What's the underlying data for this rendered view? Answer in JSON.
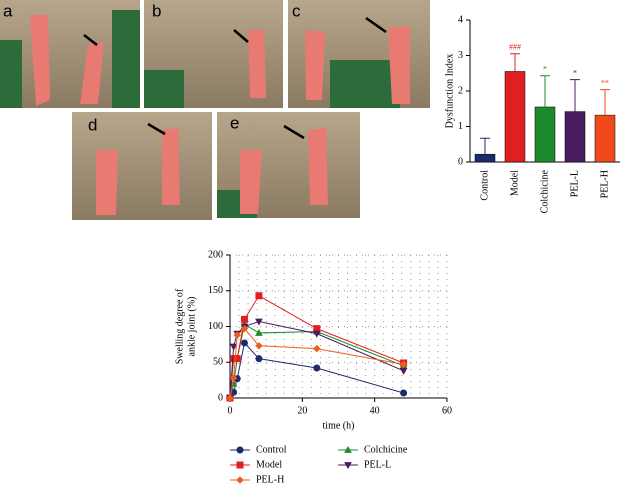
{
  "panels": {
    "labels": [
      "a",
      "b",
      "c",
      "d",
      "e"
    ]
  },
  "chart_data": [
    {
      "type": "bar",
      "ylabel": "Dysfunction Index",
      "categories": [
        "Control",
        "Model",
        "Colchicine",
        "PEL-L",
        "PEL-H"
      ],
      "values": [
        0.22,
        2.55,
        1.55,
        1.42,
        1.32
      ],
      "errors": [
        0.45,
        0.5,
        0.88,
        0.9,
        0.72
      ],
      "colors": [
        "#1f2a6b",
        "#e02020",
        "#1e8a2e",
        "#4a1b5e",
        "#f04a1a"
      ],
      "annotations": [
        null,
        "###",
        "*",
        "*",
        "**"
      ],
      "ylim": [
        0,
        4
      ],
      "yticks": [
        0,
        1,
        2,
        3,
        4
      ]
    },
    {
      "type": "line",
      "xlabel": "time (h)",
      "ylabel": [
        "Swelling degree of",
        "ankle joint (%)"
      ],
      "x": [
        0,
        1,
        2,
        4,
        8,
        24,
        48
      ],
      "series": [
        {
          "name": "Control",
          "color": "#1f2a6b",
          "marker": "circle",
          "values": [
            0,
            8,
            27,
            77,
            55,
            42,
            7
          ]
        },
        {
          "name": "Colchicine",
          "color": "#1e8a2e",
          "marker": "triangle-up",
          "values": [
            0,
            20,
            55,
            103,
            91,
            93,
            45
          ]
        },
        {
          "name": "Model",
          "color": "#e02020",
          "marker": "square",
          "values": [
            0,
            55,
            55,
            110,
            143,
            97,
            49
          ]
        },
        {
          "name": "PEL-L",
          "color": "#4a1b5e",
          "marker": "triangle-down",
          "values": [
            0,
            72,
            90,
            100,
            107,
            90,
            38
          ]
        },
        {
          "name": "PEL-H",
          "color": "#f05a1a",
          "marker": "diamond",
          "values": [
            0,
            28,
            88,
            97,
            73,
            69,
            47
          ]
        }
      ],
      "xlim": [
        0,
        60
      ],
      "xticks": [
        0,
        20,
        40,
        60
      ],
      "ylim": [
        0,
        200
      ],
      "yticks": [
        0,
        50,
        100,
        150,
        200
      ],
      "grid": "dotted"
    }
  ]
}
